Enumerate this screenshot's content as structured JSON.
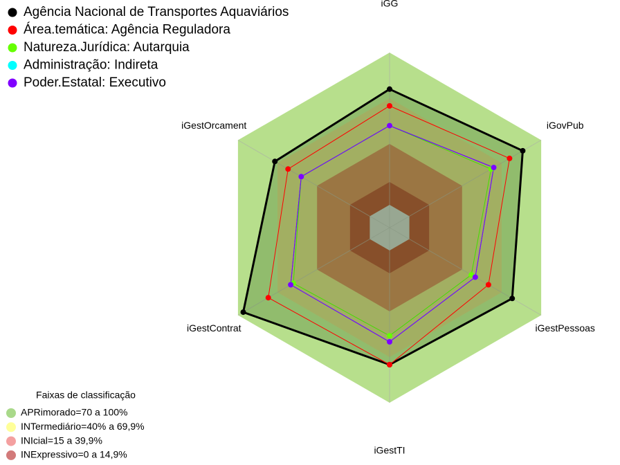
{
  "chart_data": {
    "type": "radar",
    "categories": [
      "iGG",
      "iGovPub",
      "iGestPessoas",
      "iGestTI",
      "iGestContrat",
      "iGestOrcament"
    ],
    "rlim": [
      0,
      100
    ],
    "series": [
      {
        "name": "Agência Nacional de Transportes Aquaviários",
        "color": "#000000",
        "line_color": "#000000",
        "values": [
          76,
          86,
          78,
          75,
          96,
          72
        ]
      },
      {
        "name": "Área.temática: Agência Reguladora",
        "color": "#ff0000",
        "line_color": "#ff0000",
        "values": [
          65,
          76,
          60,
          75,
          77,
          62
        ]
      },
      {
        "name": "Natureza.Jurídica: Autarquia",
        "color": "#66ff00",
        "line_color": "#44dd00",
        "values": [
          52,
          62,
          47,
          56,
          58,
          52
        ]
      },
      {
        "name": "Administração: Indireta",
        "color": "#00ffff",
        "line_color": "#0044ff",
        "values": [
          52,
          64,
          50,
          60,
          60,
          52
        ]
      },
      {
        "name": "Poder.Estatal: Executivo",
        "color": "#8000ff",
        "line_color": "#8000ff",
        "values": [
          52,
          64,
          50,
          60,
          60,
          52
        ]
      }
    ],
    "bands_title": "Faixas de classificação",
    "bands": [
      {
        "label": "APRimorado=70 a 100%",
        "from": 70,
        "to": 100,
        "color": "#a9d98a",
        "fill": "#b7df8c"
      },
      {
        "label": "INTermediário=40% a 69,9%",
        "from": 40,
        "to": 70,
        "color": "#ffff99",
        "fill": "#cfcc7c"
      },
      {
        "label": "INIcial=15 a 39,9%",
        "from": 15,
        "to": 40,
        "color": "#f4a0a0",
        "fill": "#c47a50"
      },
      {
        "label": "INExpressivo=0 a 14,9%",
        "from": 0,
        "to": 15,
        "color": "#d27a7a",
        "fill": "#a8422c"
      }
    ]
  }
}
